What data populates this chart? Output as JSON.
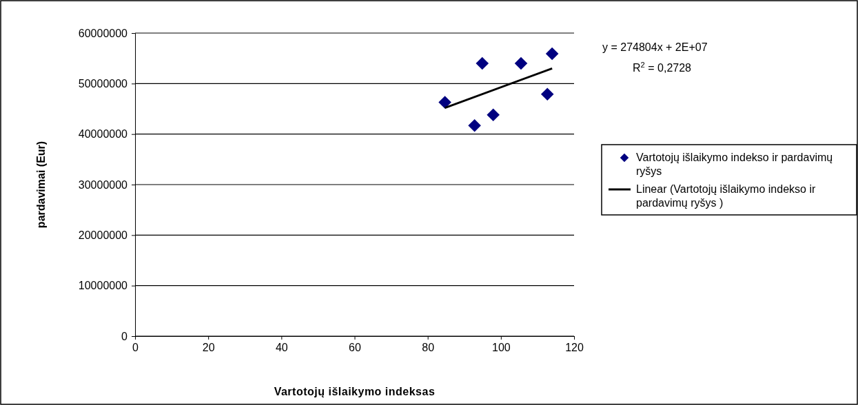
{
  "chart_data": {
    "type": "scatter",
    "xlabel": "Vartotojų išlaikymo indeksas",
    "ylabel": "pardavimai (Eur)",
    "xlim": [
      0,
      120
    ],
    "xticks": [
      0,
      20,
      40,
      60,
      80,
      100,
      120
    ],
    "ylim": [
      0,
      60000000
    ],
    "yticks": [
      0,
      10000000,
      20000000,
      30000000,
      40000000,
      50000000,
      60000000
    ],
    "grid": "y",
    "legend": "right",
    "marker": "diamond",
    "annotations": [
      "y = 274804x + 2E+07",
      "R$^{2}$ = 0,2728"
    ],
    "series": [
      {
        "name": "Vartotojų išlaikymo indekso ir pardavimų ryšys",
        "color": "#000080",
        "x": [
          84.7,
          92.8,
          94.9,
          97.9,
          105.5,
          112.7,
          114.0
        ],
        "values": [
          46300000,
          41700000,
          54000000,
          43800000,
          54000000,
          47900000,
          55900000
        ]
      },
      {
        "name": "Linear (Vartotojų išlaikymo indekso ir pardavimų ryšys )",
        "type": "line",
        "color": "#000000",
        "line_style": "solid",
        "marker": "none",
        "x": [
          84.7,
          114.0
        ],
        "values": [
          45200000,
          53000000
        ]
      }
    ]
  }
}
